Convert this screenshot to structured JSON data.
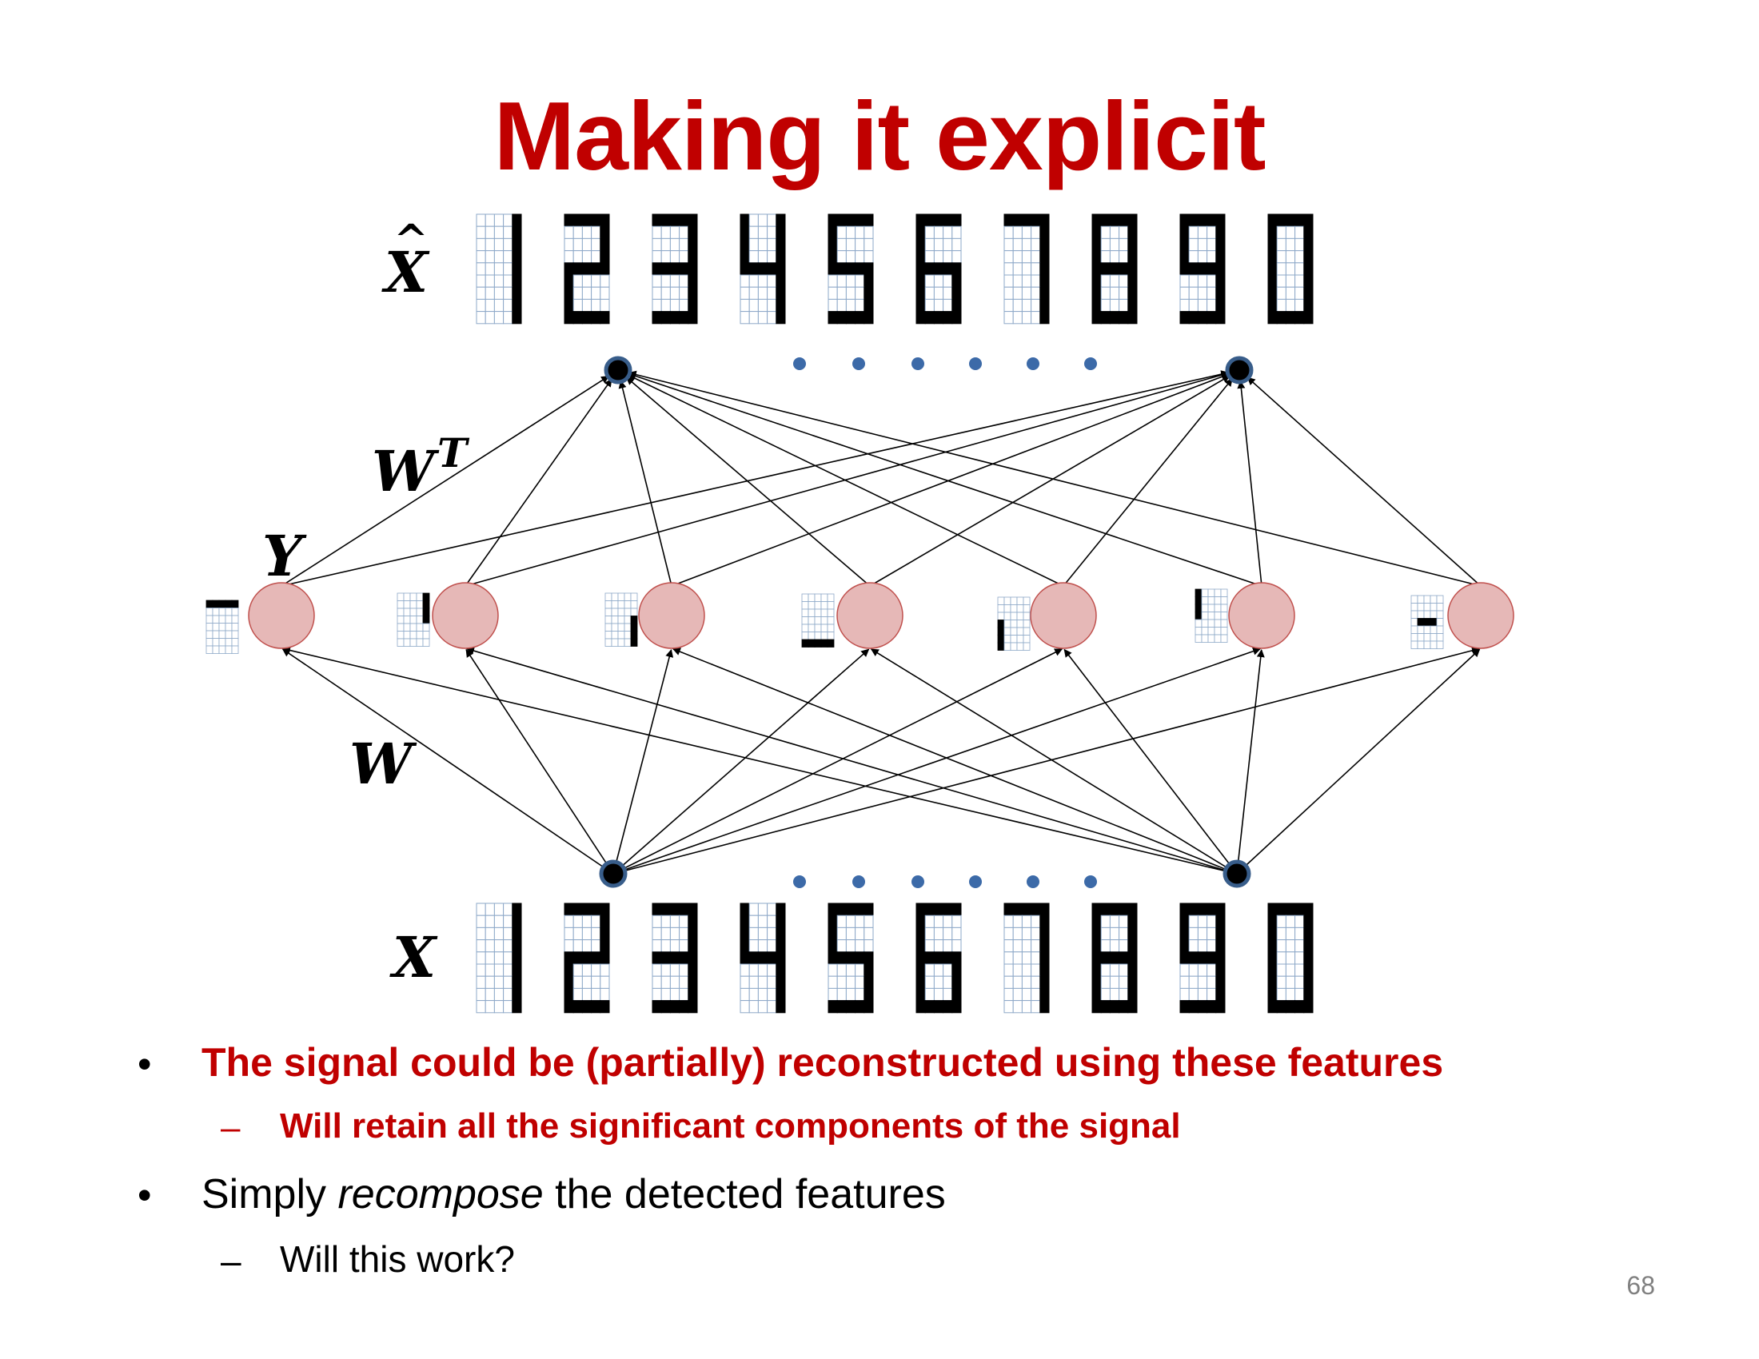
{
  "title": "Making it explicit",
  "labels": {
    "x_hat": "X",
    "x_hat_accent": "^",
    "w_transpose": "W",
    "w_transpose_sup": "T",
    "y": "Y",
    "w": "W",
    "x": "X"
  },
  "digits": [
    "1",
    "2",
    "3",
    "4",
    "5",
    "6",
    "7",
    "8",
    "9",
    "0"
  ],
  "hidden_unit_count": 7,
  "bullets": [
    {
      "level": 1,
      "marker": "•",
      "text": "The signal could be (partially) reconstructed using these features",
      "style": "red-bold"
    },
    {
      "level": 2,
      "marker": "–",
      "text": "Will retain all the significant components of the signal",
      "style": "red-bold"
    },
    {
      "level": 1,
      "marker": "•",
      "text_before": "Simply ",
      "text_italic": "recompose",
      "text_after": " the detected features",
      "style": "normal"
    },
    {
      "level": 2,
      "marker": "–",
      "text": "Will this work?",
      "style": "normal"
    }
  ],
  "page_number": "68",
  "colors": {
    "title": "#c00000",
    "hidden_fill": "#e6b8b7",
    "hidden_stroke": "#c0504d",
    "node_fill": "#000000",
    "node_stroke": "#385d8a",
    "dot": "#3c6aa8"
  }
}
